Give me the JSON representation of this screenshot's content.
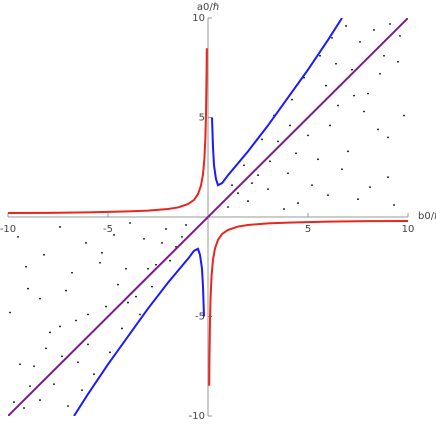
{
  "chart_data": {
    "type": "line",
    "x_label": "b0/ℏ",
    "y_label": "a0/ℏ",
    "xlim": [
      -10,
      10
    ],
    "ylim": [
      -10,
      10
    ],
    "xticks": [
      -10,
      -5,
      5,
      10
    ],
    "yticks": [
      -10,
      -5,
      5,
      10
    ],
    "series": [
      {
        "type": "scatter",
        "color": "#000000",
        "x": [
          1,
          1.5,
          2,
          2.5,
          3,
          3.5,
          4,
          4.5,
          5,
          5.5,
          6,
          6.5,
          7,
          7.5,
          8,
          8.5,
          9,
          9.5,
          9.8,
          1.8,
          2.7,
          3.3,
          4.2,
          4.8,
          5.6,
          6.2,
          6.9,
          7.6,
          8.3,
          9.1,
          7.2,
          8.8,
          9.6,
          3.8,
          5.2,
          6.7,
          8.1,
          9.3,
          2.2,
          4.4,
          6.1,
          7.8,
          9.0,
          5.9,
          7.3,
          8.6,
          3.1,
          4.1,
          1.2,
          6.4,
          -1.1,
          -1.6,
          -2.1,
          -2.6,
          -3.2,
          -3.6,
          -4.1,
          -4.7,
          -5.1,
          -5.4,
          -6.1,
          -6.6,
          -7.1,
          -7.4,
          -8.1,
          -8.4,
          -9.1,
          -9.4,
          -9.9,
          -1.9,
          -2.8,
          -3.4,
          -4.3,
          -4.9,
          -5.7,
          -6.3,
          -7.0,
          -7.7,
          -8.4,
          -9.2,
          -7.3,
          -8.9,
          -9.7,
          -3.9,
          -5.3,
          -6.8,
          -8.2,
          -9.5,
          -2.3,
          -4.5,
          -6.0,
          -7.9,
          -9.0,
          -6.0,
          -7.4,
          -8.7,
          -3.0,
          -4.0,
          -1.3,
          -6.5
        ],
        "values": [
          0.5,
          1.2,
          0.8,
          2.1,
          1.4,
          3.8,
          2.2,
          0.7,
          4.1,
          2.9,
          1.1,
          5.6,
          3.3,
          0.9,
          6.2,
          4.4,
          2.0,
          7.8,
          5.1,
          2.6,
          3.9,
          5.1,
          5.9,
          7.0,
          8.1,
          9.0,
          9.6,
          8.8,
          9.4,
          9.7,
          7.4,
          8.1,
          9.1,
          0.4,
          1.6,
          2.4,
          1.5,
          0.6,
          1.7,
          3.2,
          4.6,
          5.3,
          4.0,
          6.6,
          6.1,
          7.2,
          2.8,
          4.6,
          1.6,
          7.7,
          -0.4,
          -1.5,
          -0.6,
          -2.4,
          -1.1,
          -4.0,
          -2.6,
          -0.9,
          -4.5,
          -2.3,
          -1.3,
          -5.2,
          -3.7,
          -0.5,
          -6.6,
          -4.1,
          -2.5,
          -7.4,
          -4.8,
          -2.2,
          -3.5,
          -4.9,
          -5.6,
          -6.8,
          -7.9,
          -8.7,
          -9.5,
          -8.4,
          -9.2,
          -9.6,
          -7.0,
          -8.5,
          -9.3,
          -0.3,
          -1.8,
          -2.8,
          -1.9,
          -1.0,
          -1.3,
          -3.4,
          -4.9,
          -5.8,
          -3.6,
          -6.4,
          -5.5,
          -7.5,
          -2.6,
          -4.3,
          -1.0,
          -7.3
        ]
      },
      {
        "type": "line",
        "color": "#e8261c",
        "x": [
          -10,
          -8,
          -6,
          -4,
          -3,
          -2,
          -1.5,
          -1,
          -0.7,
          -0.5,
          -0.35,
          -0.25,
          -0.18,
          -0.13,
          -0.1,
          -0.07,
          -0.06
        ],
        "values": [
          0.2,
          0.21,
          0.23,
          0.28,
          0.32,
          0.4,
          0.48,
          0.65,
          0.86,
          1.15,
          1.58,
          2.15,
          2.93,
          4.0,
          5.15,
          7.29,
          8.48
        ]
      },
      {
        "type": "line",
        "color": "#e8261c",
        "x": [
          10,
          8,
          6,
          4,
          3,
          2,
          1.5,
          1,
          0.7,
          0.5,
          0.35,
          0.25,
          0.18,
          0.13,
          0.1,
          0.07,
          0.06
        ],
        "values": [
          -0.2,
          -0.21,
          -0.23,
          -0.28,
          -0.32,
          -0.4,
          -0.48,
          -0.65,
          -0.86,
          -1.15,
          -1.58,
          -2.15,
          -2.93,
          -4.0,
          -5.15,
          -7.29,
          -8.48
        ]
      },
      {
        "type": "line",
        "color": "#1a1aff",
        "x": [
          0.2,
          0.25,
          0.3,
          0.4,
          0.5,
          0.7,
          1,
          2,
          3,
          4,
          5,
          6,
          6.7
        ],
        "values": [
          5,
          3.5,
          2.6,
          1.9,
          1.6,
          1.7,
          2.1,
          3.3,
          4.6,
          6,
          7.4,
          8.9,
          10
        ]
      },
      {
        "type": "line",
        "color": "#1a1aff",
        "x": [
          -0.2,
          -0.25,
          -0.3,
          -0.4,
          -0.5,
          -0.7,
          -1,
          -2,
          -3,
          -4,
          -5,
          -6,
          -6.7
        ],
        "values": [
          -5,
          -3.5,
          -2.6,
          -1.9,
          -1.6,
          -1.7,
          -2.1,
          -3.3,
          -4.6,
          -6,
          -7.4,
          -8.9,
          -10
        ]
      },
      {
        "type": "line",
        "color": "#7a1a8a",
        "x": [
          -10,
          10
        ],
        "values": [
          -10,
          10
        ]
      }
    ]
  }
}
